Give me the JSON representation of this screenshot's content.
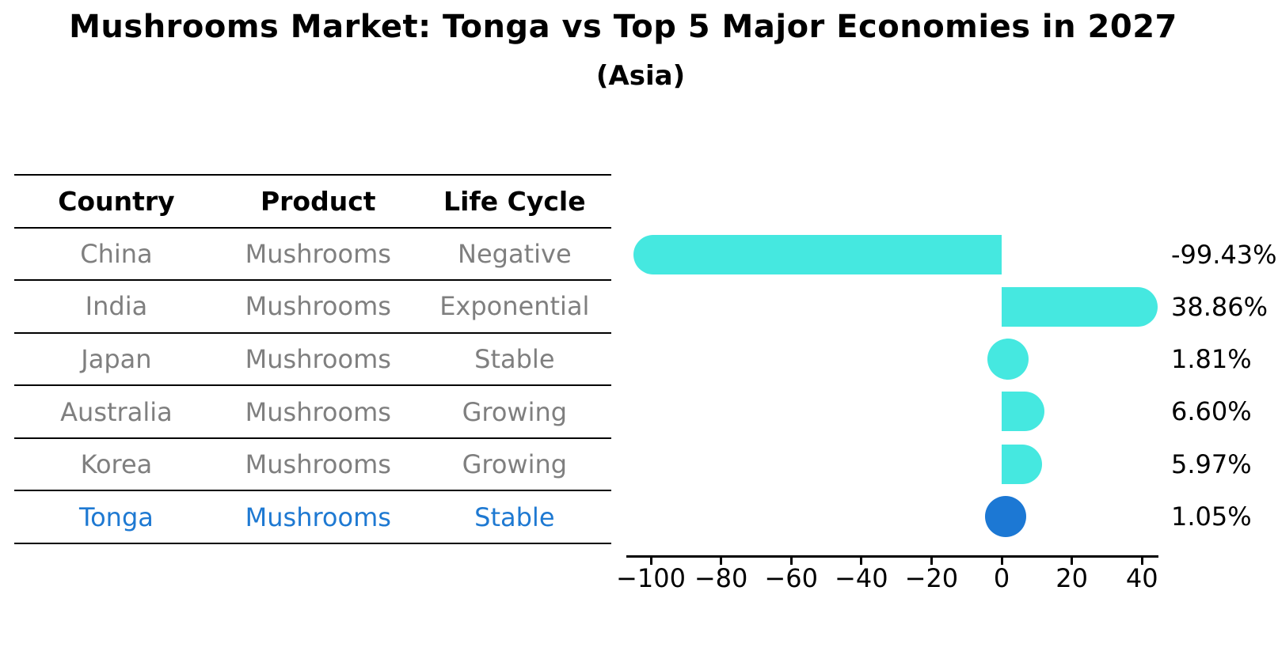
{
  "title": "Mushrooms Market: Tonga vs Top 5 Major Economies in 2027",
  "subtitle": "(Asia)",
  "table": {
    "headers": [
      "Country",
      "Product",
      "Life Cycle"
    ],
    "rows": [
      {
        "country": "China",
        "product": "Mushrooms",
        "life_cycle": "Negative",
        "highlight": false
      },
      {
        "country": "India",
        "product": "Mushrooms",
        "life_cycle": "Exponential",
        "highlight": false
      },
      {
        "country": "Japan",
        "product": "Mushrooms",
        "life_cycle": "Stable",
        "highlight": false
      },
      {
        "country": "Australia",
        "product": "Mushrooms",
        "life_cycle": "Growing",
        "highlight": false
      },
      {
        "country": "Korea",
        "product": "Mushrooms",
        "life_cycle": "Growing",
        "highlight": false
      },
      {
        "country": "Tonga",
        "product": "Mushrooms",
        "life_cycle": "Stable",
        "highlight": true
      }
    ]
  },
  "chart_data": {
    "type": "bar",
    "orientation": "horizontal",
    "title": "Mushrooms Market: Tonga vs Top 5 Major Economies in 2027 (Asia)",
    "categories": [
      "China",
      "India",
      "Japan",
      "Australia",
      "Korea",
      "Tonga"
    ],
    "values": [
      -99.43,
      38.86,
      1.81,
      6.6,
      5.97,
      1.05
    ],
    "value_labels": [
      "-99.43%",
      "38.86%",
      "1.81%",
      "6.60%",
      "5.97%",
      "1.05%"
    ],
    "unit": "%",
    "x_ticks": [
      -100,
      -80,
      -60,
      -40,
      -20,
      0,
      20,
      40
    ],
    "x_tick_labels": [
      "−100",
      "−80",
      "−60",
      "−40",
      "−20",
      "0",
      "20",
      "40"
    ],
    "xlim": [
      -107,
      44.7
    ],
    "grid": false,
    "legend": false,
    "bar_color": "#45e8e0",
    "highlight_color": "#1c78d4",
    "highlight_index": 5
  },
  "colors": {
    "bar_cyan": "#45e8e0",
    "accent_blue": "#1c78d4",
    "highlight_text_blue": "#1e79d2",
    "muted_text": "#7f7f7f",
    "text": "#000000",
    "background": "#ffffff"
  }
}
